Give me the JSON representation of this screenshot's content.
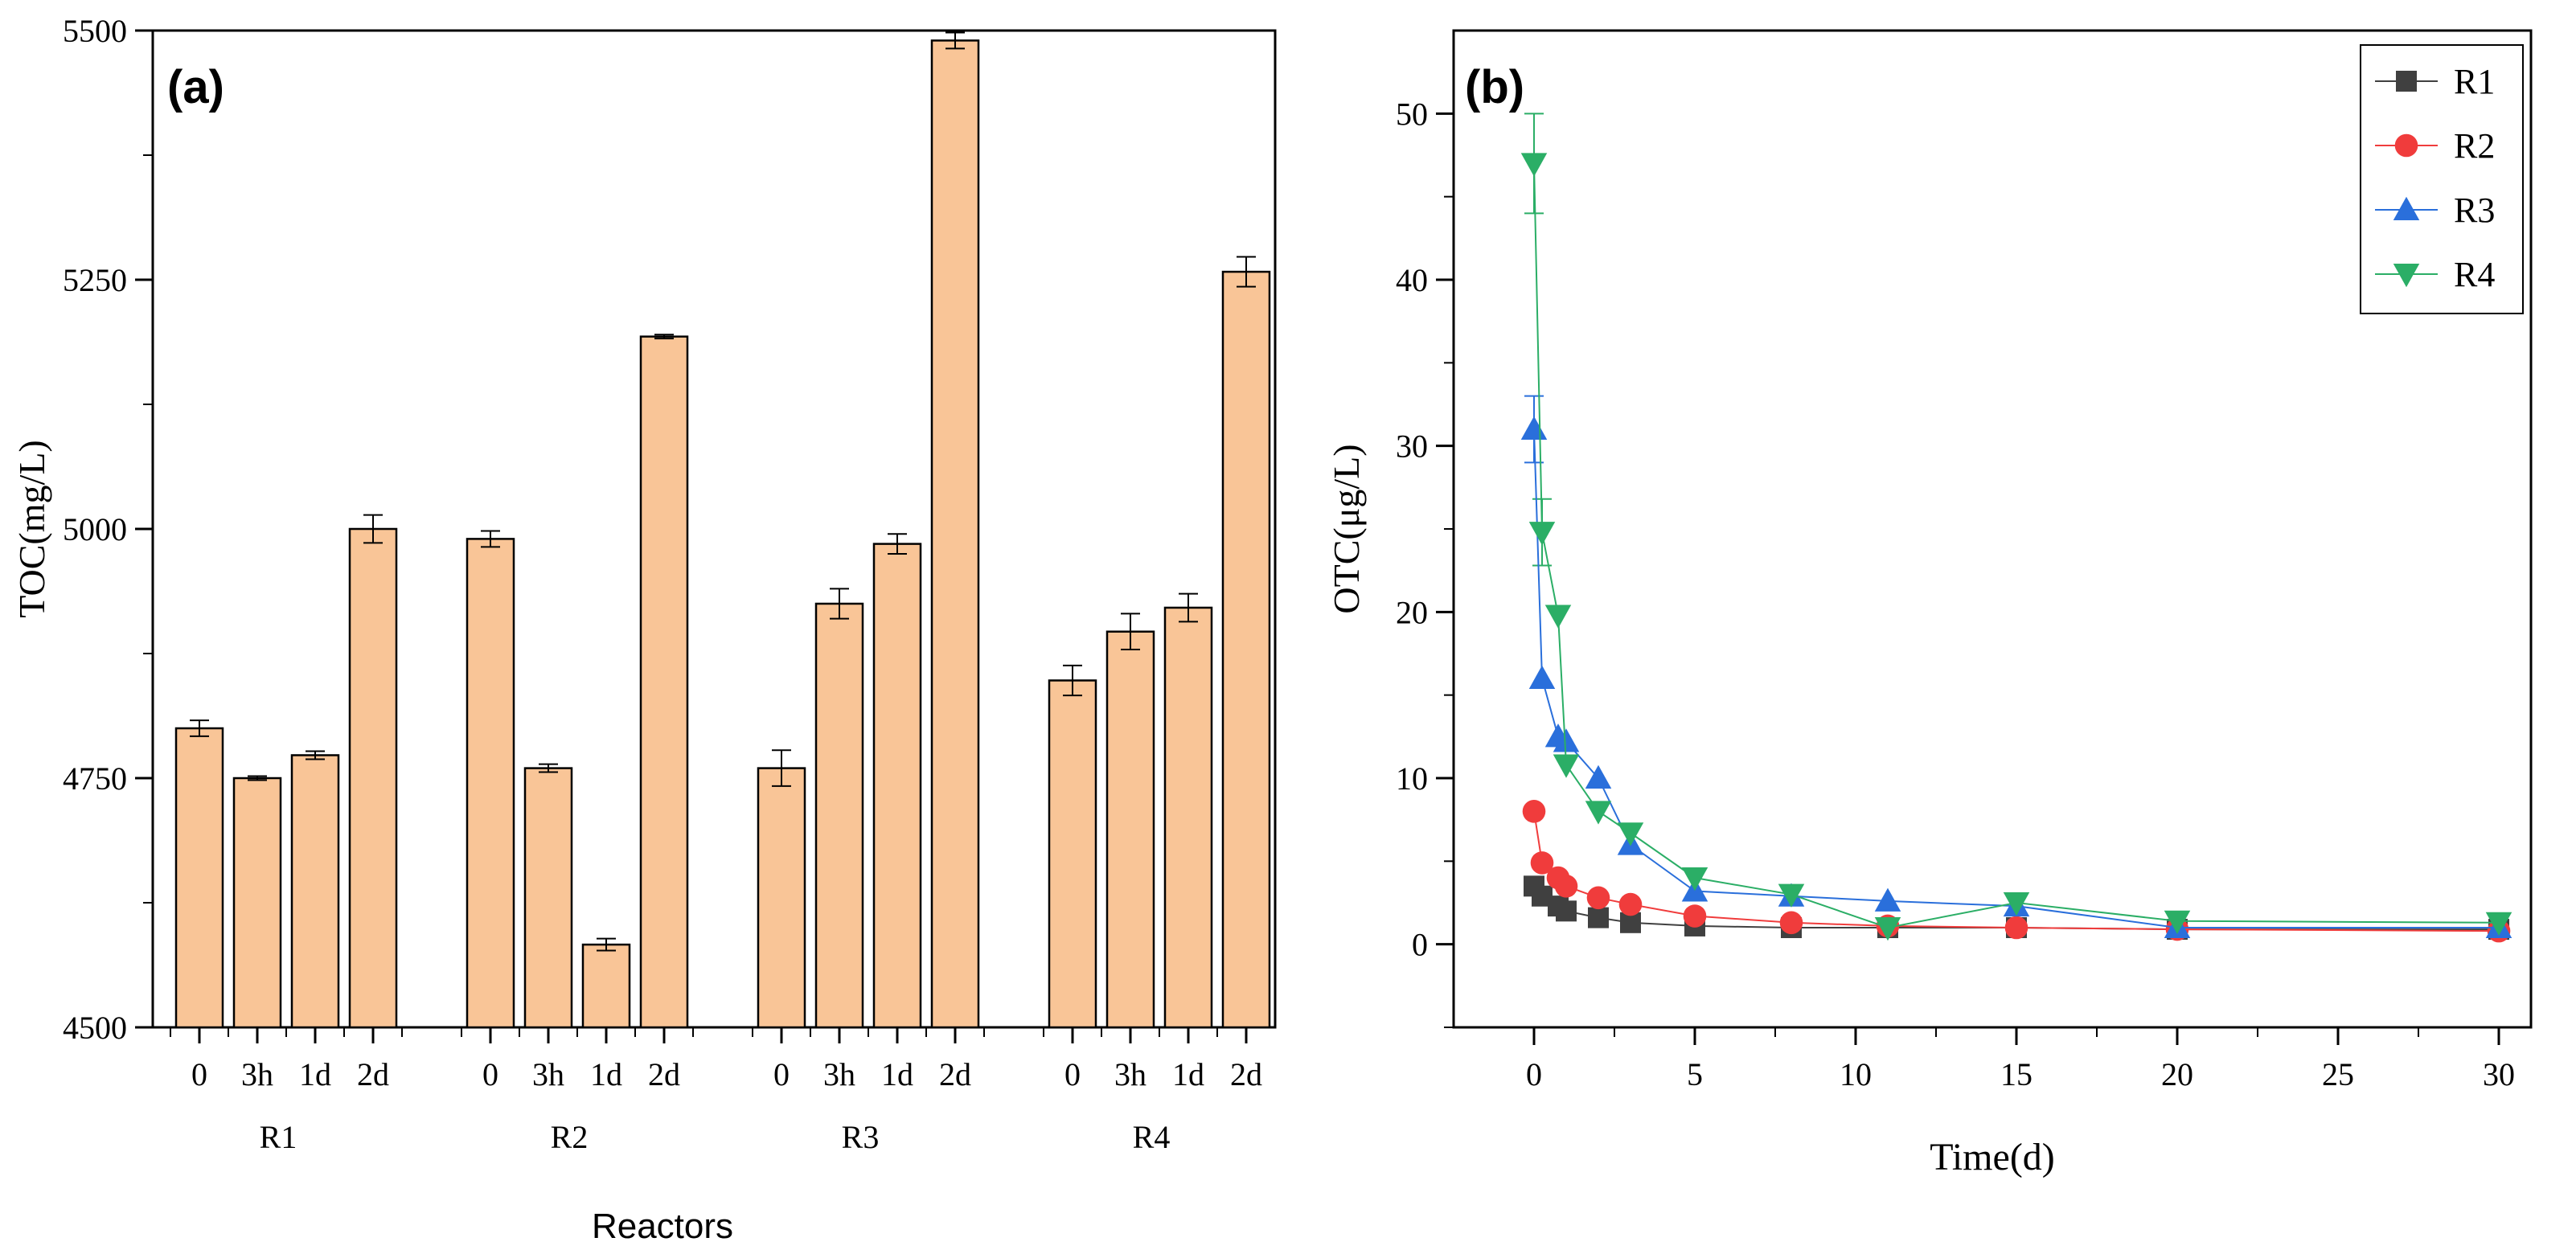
{
  "chart_data": [
    {
      "panel_label": "(a)",
      "type": "bar",
      "ylabel": "TOC(mg/L)",
      "xlabel": "Reactors",
      "ylim": [
        4500,
        5500
      ],
      "yticks": [
        4500,
        4750,
        5000,
        5250,
        5500
      ],
      "bar_color": "#F9C597",
      "groups": [
        {
          "name": "R1",
          "categories": [
            "0",
            "3h",
            "1d",
            "2d"
          ],
          "values": [
            4800,
            4750,
            4773,
            5000
          ],
          "errors": [
            8,
            2,
            4,
            14
          ]
        },
        {
          "name": "R2",
          "categories": [
            "0",
            "3h",
            "1d",
            "2d"
          ],
          "values": [
            4990,
            4760,
            4583,
            5193
          ],
          "errors": [
            8,
            4,
            6,
            2
          ]
        },
        {
          "name": "R3",
          "categories": [
            "0",
            "3h",
            "1d",
            "2d"
          ],
          "values": [
            4760,
            4925,
            4985,
            5490
          ],
          "errors": [
            18,
            15,
            10,
            8
          ]
        },
        {
          "name": "R4",
          "categories": [
            "0",
            "3h",
            "1d",
            "2d"
          ],
          "values": [
            4848,
            4897,
            4921,
            5258
          ],
          "errors": [
            15,
            18,
            14,
            15
          ]
        }
      ]
    },
    {
      "panel_label": "(b)",
      "type": "line",
      "xlabel": "Time(d)",
      "ylabel": "OTC(μg/L)",
      "xlim": [
        -2.5,
        31
      ],
      "ylim": [
        -5,
        55
      ],
      "xticks": [
        0,
        5,
        10,
        15,
        20,
        25,
        30
      ],
      "yticks": [
        0,
        10,
        20,
        30,
        40,
        50
      ],
      "x": [
        0,
        0.25,
        0.75,
        1,
        2,
        3,
        5,
        8,
        11,
        15,
        20,
        30
      ],
      "series": [
        {
          "name": "R1",
          "color": "#404040",
          "marker": "square",
          "values": [
            3.5,
            2.9,
            2.3,
            2.0,
            1.6,
            1.3,
            1.1,
            1.0,
            1.0,
            1.0,
            0.9,
            0.9
          ]
        },
        {
          "name": "R2",
          "color": "#F03C3C",
          "marker": "circle",
          "values": [
            8.0,
            4.9,
            4.0,
            3.5,
            2.8,
            2.4,
            1.7,
            1.3,
            1.1,
            1.0,
            0.9,
            0.8
          ]
        },
        {
          "name": "R3",
          "color": "#2A6FDB",
          "marker": "triangle-up",
          "values": [
            31.0,
            16.0,
            12.5,
            12.2,
            10.0,
            6.0,
            3.2,
            2.9,
            2.6,
            2.3,
            1.0,
            1.0
          ]
        },
        {
          "name": "R4",
          "color": "#2BAE66",
          "marker": "triangle-down",
          "values": [
            47.0,
            24.8,
            19.8,
            10.8,
            8.0,
            6.7,
            4.0,
            3.0,
            1.0,
            2.5,
            1.4,
            1.3
          ]
        }
      ],
      "errors_first": [
        {
          "series": "R3",
          "err": 2.0
        },
        {
          "series": "R4",
          "err": 3.0
        },
        {
          "series": "R4",
          "x_index": 1,
          "err": 2.0
        }
      ],
      "legend_position": "top-right"
    }
  ]
}
